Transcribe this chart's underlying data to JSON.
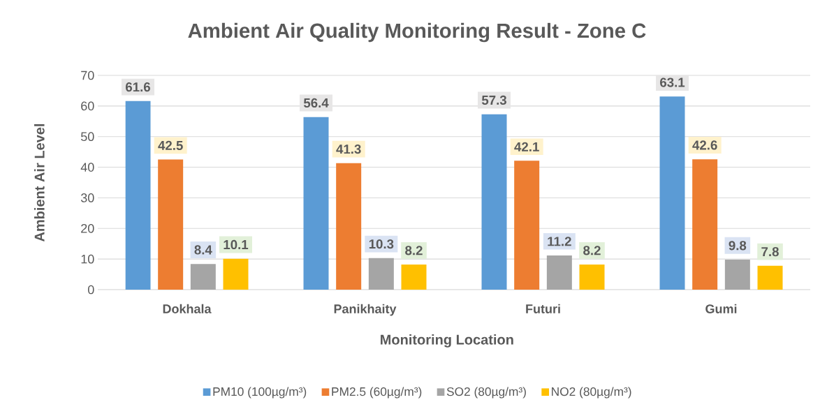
{
  "chart_data": {
    "type": "bar",
    "title": "Ambient Air Quality Monitoring Result - Zone C",
    "xlabel": "Monitoring Location",
    "ylabel": "Ambient Air Level",
    "categories": [
      "Dokhala",
      "Panikhaity",
      "Futuri",
      "Gumi"
    ],
    "series": [
      {
        "name": "PM10 (100µg/m³)",
        "color": "#5b9bd5",
        "values": [
          61.6,
          56.4,
          57.3,
          63.1
        ]
      },
      {
        "name": "PM2.5 (60µg/m³)",
        "color": "#ed7d31",
        "values": [
          42.5,
          41.3,
          42.1,
          42.6
        ]
      },
      {
        "name": "SO2 (80µg/m³)",
        "color": "#a5a5a5",
        "values": [
          8.4,
          10.3,
          11.2,
          9.8
        ]
      },
      {
        "name": "NO2 (80µg/m³)",
        "color": "#ffc000",
        "values": [
          10.1,
          8.2,
          8.2,
          7.8
        ]
      }
    ],
    "ylim": [
      0,
      70
    ],
    "yticks": [
      0,
      10,
      20,
      30,
      40,
      50,
      60,
      70
    ],
    "grid": "y",
    "legend": "bottom",
    "data_labels": true
  }
}
